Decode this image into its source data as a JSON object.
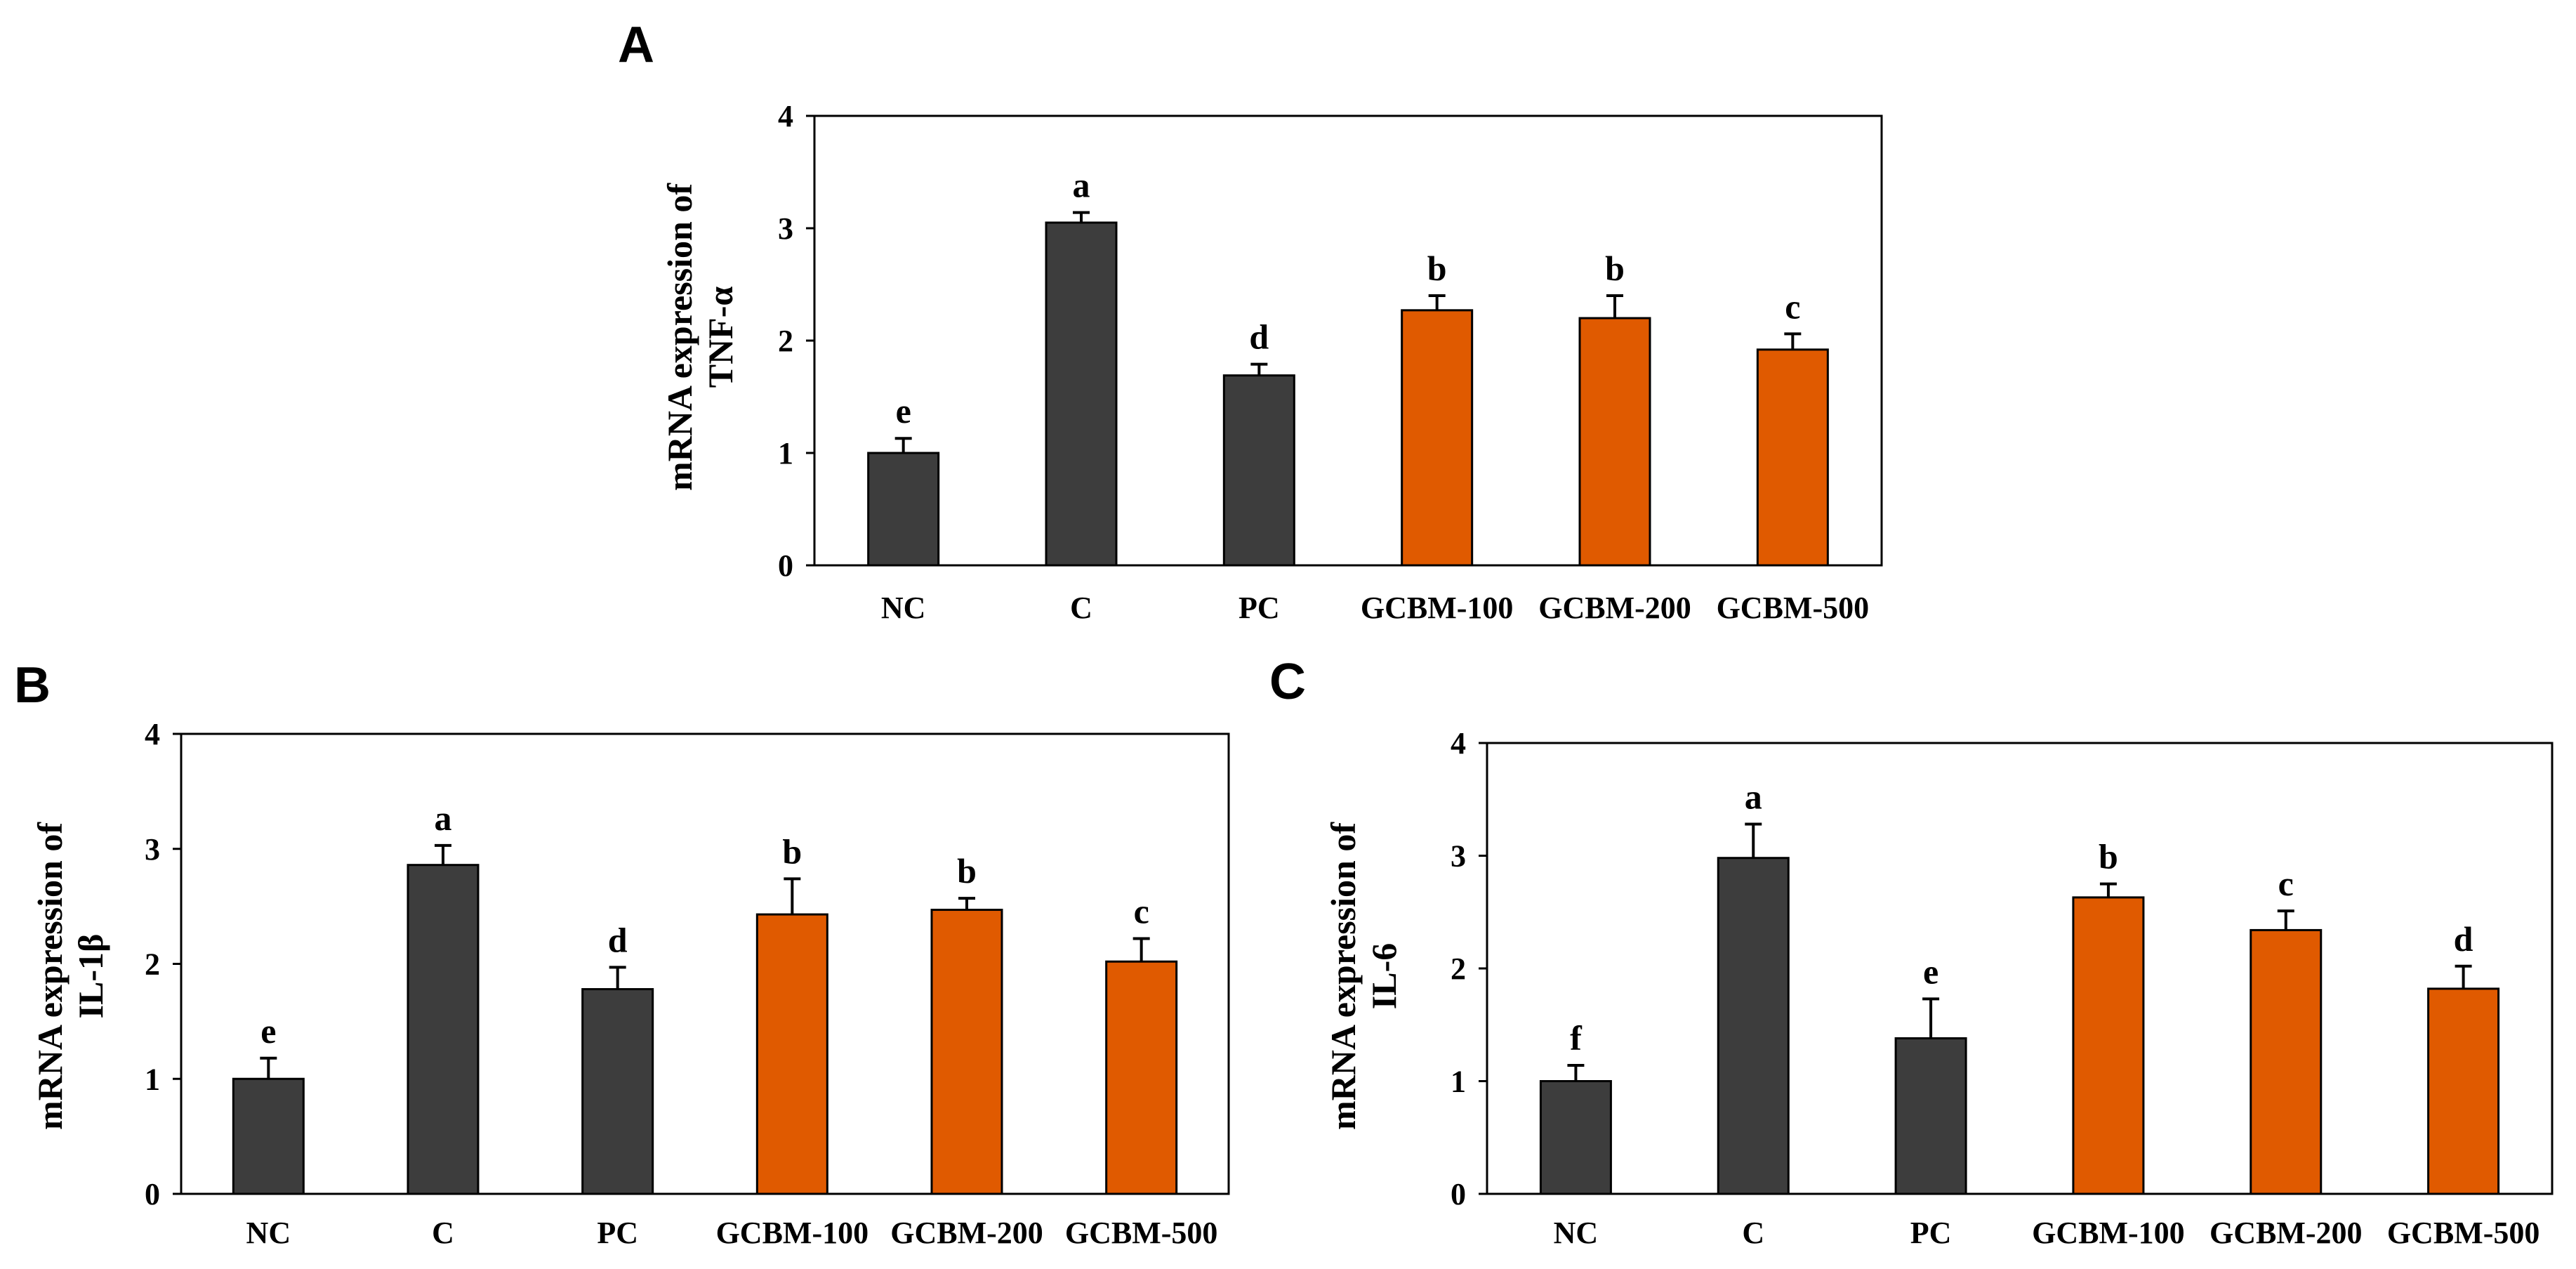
{
  "colors": {
    "control": "#3d3d3d",
    "treatment": "#e05a00",
    "axis": "#000000"
  },
  "chart_data": [
    {
      "panel": "A",
      "type": "bar",
      "ylabel_lines": [
        "mRNA expression of",
        "TNF-α"
      ],
      "categories": [
        "NC",
        "C",
        "PC",
        "GCBM-100",
        "GCBM-200",
        "GCBM-500"
      ],
      "values": [
        1.0,
        3.05,
        1.69,
        2.27,
        2.2,
        1.92
      ],
      "errors": [
        0.13,
        0.09,
        0.1,
        0.13,
        0.2,
        0.14
      ],
      "letters": [
        "e",
        "a",
        "d",
        "b",
        "b",
        "c"
      ],
      "groups": [
        "control",
        "control",
        "control",
        "treatment",
        "treatment",
        "treatment"
      ],
      "ylim": [
        0,
        4
      ],
      "yticks": [
        "0",
        "1",
        "2",
        "3",
        "4"
      ]
    },
    {
      "panel": "B",
      "type": "bar",
      "ylabel_lines": [
        "mRNA expression of",
        "IL-1β"
      ],
      "categories": [
        "NC",
        "C",
        "PC",
        "GCBM-100",
        "GCBM-200",
        "GCBM-500"
      ],
      "values": [
        1.0,
        2.86,
        1.78,
        2.43,
        2.47,
        2.02
      ],
      "errors": [
        0.18,
        0.17,
        0.19,
        0.31,
        0.1,
        0.2
      ],
      "letters": [
        "e",
        "a",
        "d",
        "b",
        "b",
        "c"
      ],
      "groups": [
        "control",
        "control",
        "control",
        "treatment",
        "treatment",
        "treatment"
      ],
      "ylim": [
        0,
        4
      ],
      "yticks": [
        "0",
        "1",
        "2",
        "3",
        "4"
      ]
    },
    {
      "panel": "C",
      "type": "bar",
      "ylabel_lines": [
        "mRNA expression of",
        "IL-6"
      ],
      "categories": [
        "NC",
        "C",
        "PC",
        "GCBM-100",
        "GCBM-200",
        "GCBM-500"
      ],
      "values": [
        1.0,
        2.98,
        1.38,
        2.63,
        2.34,
        1.82
      ],
      "errors": [
        0.14,
        0.3,
        0.35,
        0.12,
        0.17,
        0.2
      ],
      "letters": [
        "f",
        "a",
        "e",
        "b",
        "c",
        "d"
      ],
      "groups": [
        "control",
        "control",
        "control",
        "treatment",
        "treatment",
        "treatment"
      ],
      "ylim": [
        0,
        4
      ],
      "yticks": [
        "0",
        "1",
        "2",
        "3",
        "4"
      ]
    }
  ]
}
